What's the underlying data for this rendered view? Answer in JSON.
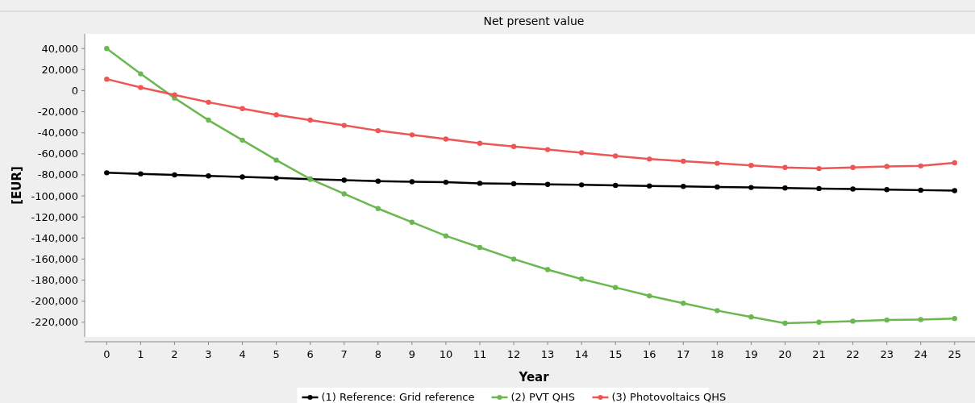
{
  "chart_data": {
    "type": "line",
    "title": "Net present value",
    "xlabel": "Year",
    "ylabel": "[EUR]",
    "x": [
      0,
      1,
      2,
      3,
      4,
      5,
      6,
      7,
      8,
      9,
      10,
      11,
      12,
      13,
      14,
      15,
      16,
      17,
      18,
      19,
      20,
      21,
      22,
      23,
      24,
      25
    ],
    "xlim": [
      -0.65,
      25.6
    ],
    "xticks": [
      0,
      1,
      2,
      3,
      4,
      5,
      6,
      7,
      8,
      9,
      10,
      11,
      12,
      13,
      14,
      15,
      16,
      17,
      18,
      19,
      20,
      21,
      22,
      23,
      24,
      25
    ],
    "ylim": [
      -234000,
      54000
    ],
    "yticks": [
      {
        "value": 40000,
        "label": "40,000"
      },
      {
        "value": 20000,
        "label": "20,000"
      },
      0,
      {
        "value": -20000,
        "label": "-20,000"
      },
      {
        "value": -40000,
        "label": "-40,000"
      },
      {
        "value": -60000,
        "label": "-60,000"
      },
      {
        "value": -80000,
        "label": "-80,000"
      },
      {
        "value": -100000,
        "label": "-100,000"
      },
      {
        "value": -120000,
        "label": "-120,000"
      },
      {
        "value": -140000,
        "label": "-140,000"
      },
      {
        "value": -160000,
        "label": "-160,000"
      },
      {
        "value": -180000,
        "label": "-180,000"
      },
      {
        "value": -200000,
        "label": "-200,000"
      },
      {
        "value": -220000,
        "label": "-220,000"
      }
    ],
    "grid": false,
    "legend": "bottom",
    "marker": "circle",
    "line_style": "solid",
    "series": [
      {
        "name": "(1) Reference: Grid reference",
        "color": "#000000",
        "values": [
          -78000,
          -79000,
          -80000,
          -81000,
          -82000,
          -83000,
          -84000,
          -85000,
          -86000,
          -86500,
          -87000,
          -88000,
          -88500,
          -89000,
          -89500,
          -90000,
          -90500,
          -91000,
          -91500,
          -92000,
          -92500,
          -93000,
          -93500,
          -94000,
          -94500,
          -95000
        ]
      },
      {
        "name": "(2) PVT QHS",
        "color": "#6ab850",
        "values": [
          40000,
          16000,
          -7000,
          -28000,
          -47000,
          -66000,
          -84000,
          -98000,
          -112000,
          -125000,
          -138000,
          -149000,
          -160000,
          -170000,
          -179000,
          -187000,
          -195000,
          -202000,
          -209000,
          -215000,
          -221000,
          -220000,
          -219000,
          -218000,
          -217500,
          -216500
        ]
      },
      {
        "name": "(3) Photovoltaics QHS",
        "color": "#ee5555",
        "values": [
          11000,
          3000,
          -4000,
          -11000,
          -17000,
          -23000,
          -28000,
          -33000,
          -38000,
          -42000,
          -46000,
          -50000,
          -53000,
          -56000,
          -59000,
          -62000,
          -65000,
          -67000,
          -69000,
          -71000,
          -73000,
          -74000,
          -73000,
          -72000,
          -71500,
          -68500
        ]
      }
    ]
  }
}
